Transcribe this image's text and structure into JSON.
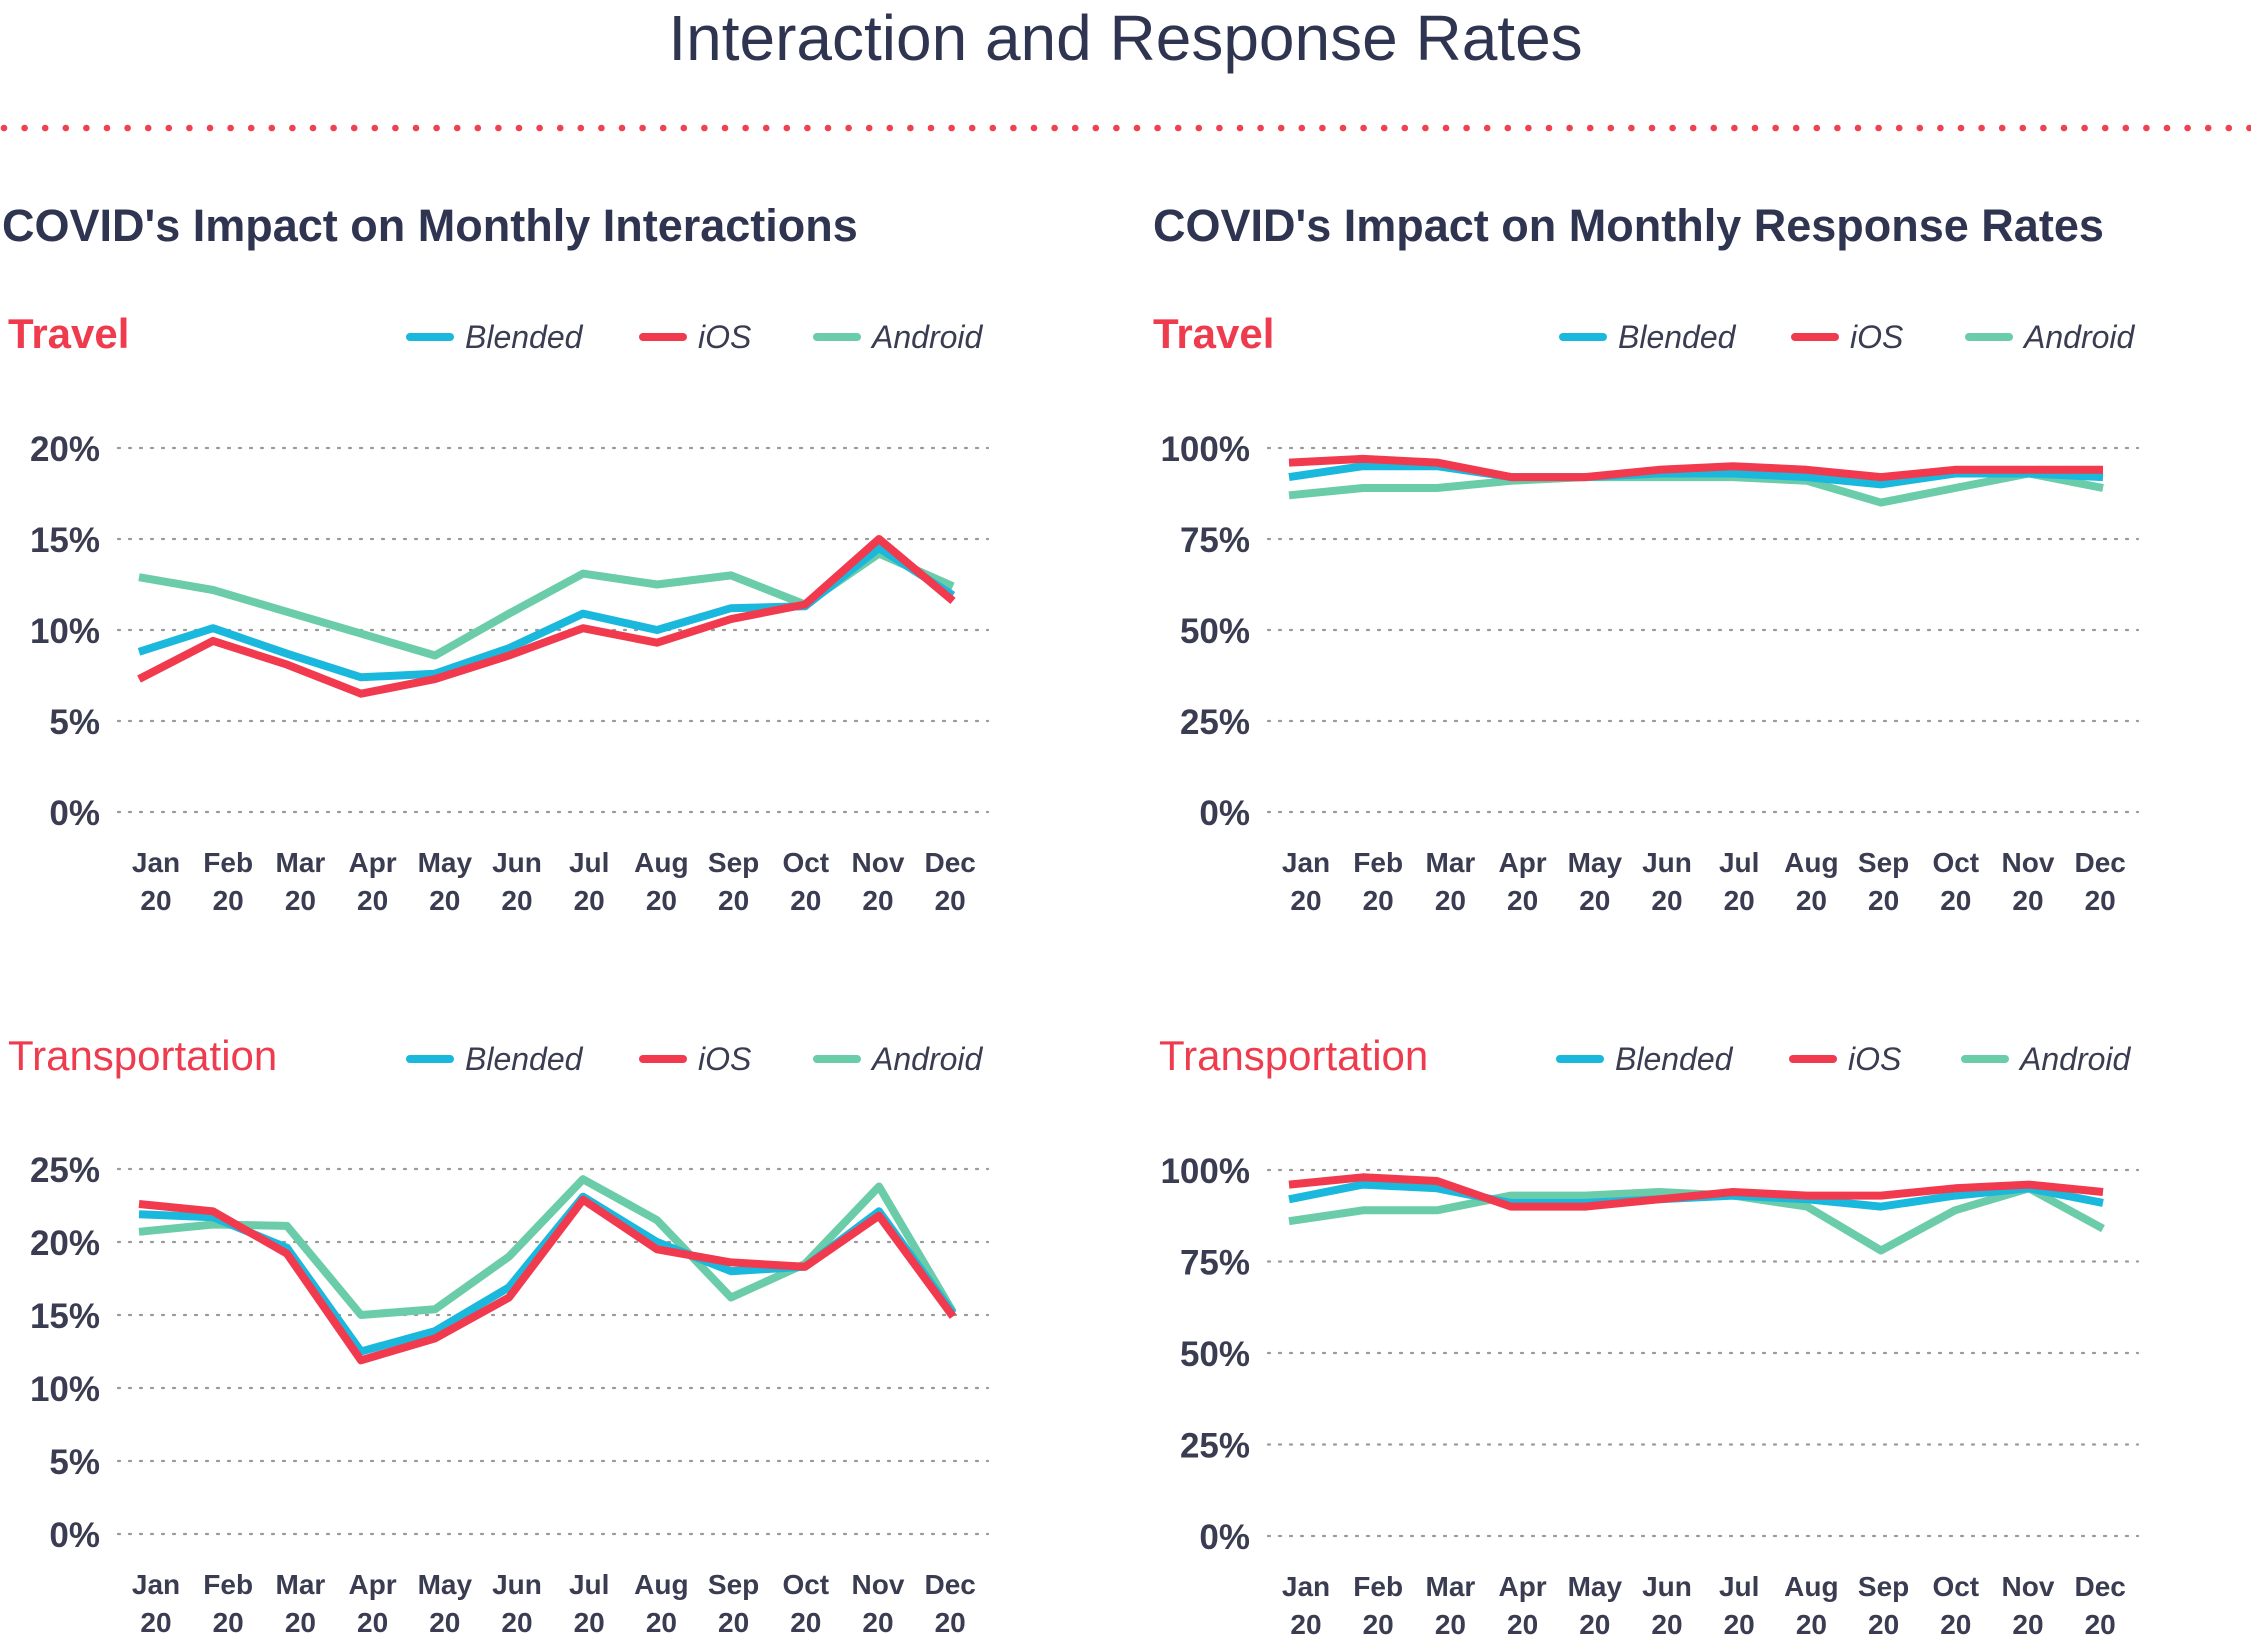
{
  "page_title": "Interaction and Response Rates",
  "section_titles": [
    "COVID's Impact on Monthly Interactions",
    "COVID's Impact on Monthly Response Rates"
  ],
  "colors": {
    "Blended": "#1bb8dd",
    "iOS": "#f23a4f",
    "Android": "#6bcca9",
    "divider": "#f0414f",
    "label": "#ee3b4d"
  },
  "chart_data": [
    {
      "type": "line",
      "label": "Travel",
      "categories": [
        [
          "Jan",
          "20"
        ],
        [
          "Feb",
          "20"
        ],
        [
          "Mar",
          "20"
        ],
        [
          "Apr",
          "20"
        ],
        [
          "May",
          "20"
        ],
        [
          "Jun",
          "20"
        ],
        [
          "Jul",
          "20"
        ],
        [
          "Aug",
          "20"
        ],
        [
          "Sep",
          "20"
        ],
        [
          "Oct",
          "20"
        ],
        [
          "Nov",
          "20"
        ],
        [
          "Dec",
          "20"
        ]
      ],
      "yticks": [
        "0%",
        "5%",
        "10%",
        "15%",
        "20%"
      ],
      "ylim": [
        0,
        20
      ],
      "series": [
        {
          "name": "Blended",
          "values": [
            8.8,
            10.1,
            8.7,
            7.4,
            7.6,
            9.0,
            10.9,
            10.0,
            11.2,
            11.3,
            14.5,
            11.9
          ]
        },
        {
          "name": "iOS",
          "values": [
            7.3,
            9.4,
            8.1,
            6.5,
            7.3,
            8.6,
            10.1,
            9.3,
            10.6,
            11.4,
            15.0,
            11.6
          ]
        },
        {
          "name": "Android",
          "values": [
            12.9,
            12.2,
            11.0,
            9.8,
            8.6,
            10.9,
            13.1,
            12.5,
            13.0,
            11.4,
            14.2,
            12.4
          ]
        }
      ]
    },
    {
      "type": "line",
      "label": "Travel",
      "categories": [
        [
          "Jan",
          "20"
        ],
        [
          "Feb",
          "20"
        ],
        [
          "Mar",
          "20"
        ],
        [
          "Apr",
          "20"
        ],
        [
          "May",
          "20"
        ],
        [
          "Jun",
          "20"
        ],
        [
          "Jul",
          "20"
        ],
        [
          "Aug",
          "20"
        ],
        [
          "Sep",
          "20"
        ],
        [
          "Oct",
          "20"
        ],
        [
          "Nov",
          "20"
        ],
        [
          "Dec",
          "20"
        ]
      ],
      "yticks": [
        "0%",
        "25%",
        "50%",
        "75%",
        "100%"
      ],
      "ylim": [
        0,
        100
      ],
      "series": [
        {
          "name": "Blended",
          "values": [
            92,
            95,
            95,
            92,
            92,
            93,
            93,
            92,
            90,
            93,
            93,
            92
          ]
        },
        {
          "name": "iOS",
          "values": [
            96,
            97,
            96,
            92,
            92,
            94,
            95,
            94,
            92,
            94,
            94,
            94
          ]
        },
        {
          "name": "Android",
          "values": [
            87,
            89,
            89,
            91,
            92,
            92,
            92,
            91,
            85,
            89,
            93,
            89
          ]
        }
      ]
    },
    {
      "type": "line",
      "label": "Transportation",
      "categories": [
        [
          "Jan",
          "20"
        ],
        [
          "Feb",
          "20"
        ],
        [
          "Mar",
          "20"
        ],
        [
          "Apr",
          "20"
        ],
        [
          "May",
          "20"
        ],
        [
          "Jun",
          "20"
        ],
        [
          "Jul",
          "20"
        ],
        [
          "Aug",
          "20"
        ],
        [
          "Sep",
          "20"
        ],
        [
          "Oct",
          "20"
        ],
        [
          "Nov",
          "20"
        ],
        [
          "Dec",
          "20"
        ]
      ],
      "yticks": [
        "0%",
        "5%",
        "10%",
        "15%",
        "20%",
        "25%"
      ],
      "ylim": [
        0,
        25
      ],
      "series": [
        {
          "name": "Blended",
          "values": [
            21.9,
            21.7,
            19.6,
            12.5,
            13.9,
            16.9,
            23.1,
            20.0,
            18.0,
            18.3,
            22.1,
            15.1
          ]
        },
        {
          "name": "iOS",
          "values": [
            22.6,
            22.1,
            19.2,
            11.9,
            13.4,
            16.2,
            22.9,
            19.5,
            18.6,
            18.3,
            21.8,
            14.9
          ]
        },
        {
          "name": "Android",
          "values": [
            20.7,
            21.2,
            21.1,
            15.0,
            15.4,
            19.0,
            24.3,
            21.5,
            16.2,
            18.5,
            23.8,
            15.2
          ]
        }
      ]
    },
    {
      "type": "line",
      "label": "Transportation",
      "categories": [
        [
          "Jan",
          "20"
        ],
        [
          "Feb",
          "20"
        ],
        [
          "Mar",
          "20"
        ],
        [
          "Apr",
          "20"
        ],
        [
          "May",
          "20"
        ],
        [
          "Jun",
          "20"
        ],
        [
          "Jul",
          "20"
        ],
        [
          "Aug",
          "20"
        ],
        [
          "Sep",
          "20"
        ],
        [
          "Oct",
          "20"
        ],
        [
          "Nov",
          "20"
        ],
        [
          "Dec",
          "20"
        ]
      ],
      "yticks": [
        "0%",
        "25%",
        "50%",
        "75%",
        "100%"
      ],
      "ylim": [
        0,
        100
      ],
      "series": [
        {
          "name": "Blended",
          "values": [
            92,
            96,
            95,
            91,
            91,
            92,
            93,
            92,
            90,
            93,
            95,
            91
          ]
        },
        {
          "name": "iOS",
          "values": [
            96,
            98,
            97,
            90,
            90,
            92,
            94,
            93,
            93,
            95,
            96,
            94
          ]
        },
        {
          "name": "Android",
          "values": [
            86,
            89,
            89,
            93,
            93,
            94,
            93,
            90,
            78,
            89,
            95,
            84
          ]
        }
      ]
    }
  ]
}
